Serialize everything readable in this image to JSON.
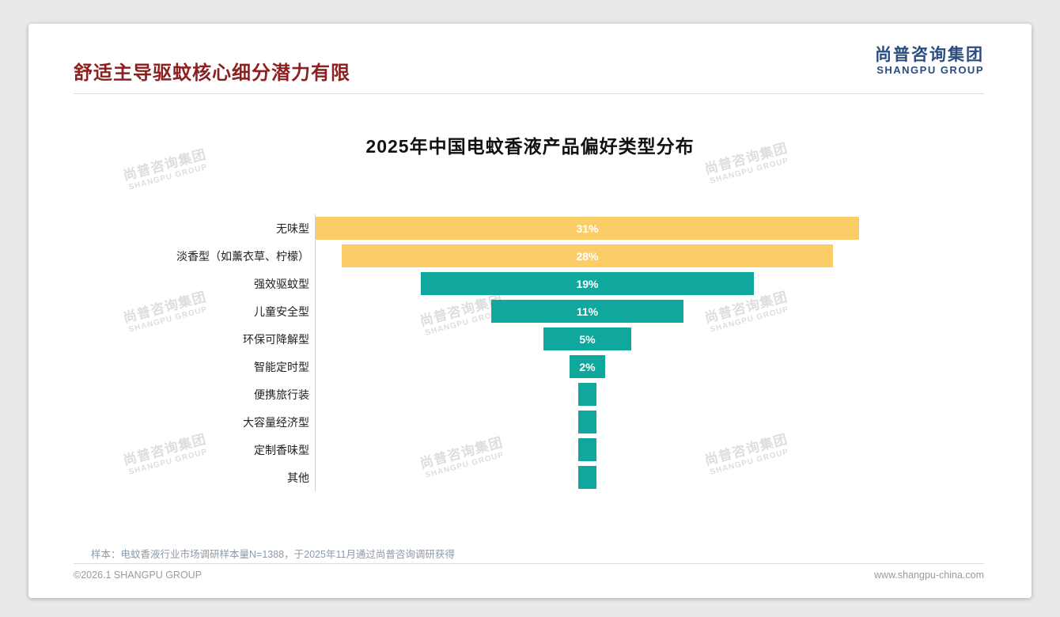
{
  "slide": {
    "title": "舒适主导驱蚊核心细分潜力有限",
    "logo": {
      "cn": "尚普咨询集团",
      "en": "SHANGPU GROUP"
    },
    "watermark": {
      "cn": "尚普咨询集团",
      "en": "SHANGPU GROUP"
    },
    "note": "样本：电蚊香液行业市场调研样本量N=1388，于2025年11月通过尚普咨询调研获得",
    "copyright": "©2026.1 SHANGPU GROUP",
    "website": "www.shangpu-china.com"
  },
  "colors": {
    "heading_red": "#8e1f1f",
    "logo_blue": "#2b4c7e",
    "bar_gold": "#facd66",
    "bar_teal": "#10a89d",
    "note_gray": "#8d9aab"
  },
  "chart_data": {
    "type": "bar",
    "layout": "horizontal-centered-funnel",
    "title": "2025年中国电蚊香液产品偏好类型分布",
    "categories": [
      "无味型",
      "淡香型（如薰衣草、柠檬）",
      "强效驱蚊型",
      "儿童安全型",
      "环保可降解型",
      "智能定时型",
      "便携旅行装",
      "大容量经济型",
      "定制香味型",
      "其他"
    ],
    "values": [
      31,
      28,
      19,
      11,
      5,
      2,
      1,
      1,
      1,
      1
    ],
    "labels": [
      "31%",
      "28%",
      "19%",
      "11%",
      "5%",
      "2%",
      "",
      "",
      "",
      ""
    ],
    "bar_colors": [
      "#facd66",
      "#facd66",
      "#10a89d",
      "#10a89d",
      "#10a89d",
      "#10a89d",
      "#10a89d",
      "#10a89d",
      "#10a89d",
      "#10a89d"
    ],
    "xlim": [
      0,
      31
    ],
    "grid": false,
    "legend": "none"
  }
}
